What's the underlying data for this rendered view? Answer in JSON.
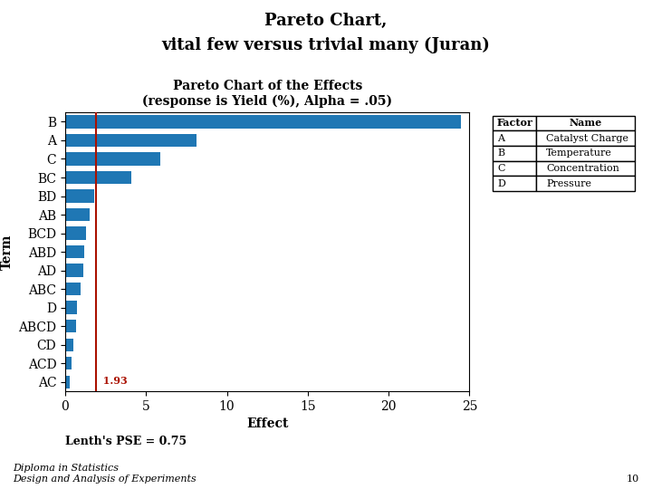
{
  "chart_data": {
    "type": "bar",
    "orientation": "horizontal",
    "title": "Pareto Chart,",
    "subtitle": "vital few versus trivial many (Juran)",
    "axes_title": "Pareto Chart of the Effects\n(response is Yield (%), Alpha = .05)",
    "categories": [
      "B",
      "A",
      "C",
      "BC",
      "BD",
      "AB",
      "BCD",
      "ABD",
      "AD",
      "ABC",
      "D",
      "ABCD",
      "CD",
      "ACD",
      "AC"
    ],
    "values": [
      24.5,
      8.1,
      5.9,
      4.1,
      1.8,
      1.5,
      1.3,
      1.2,
      1.1,
      0.95,
      0.75,
      0.65,
      0.5,
      0.4,
      0.3
    ],
    "x_label": "Effect",
    "y_label": "Term",
    "xlim": [
      0,
      25
    ],
    "xticks": [
      0,
      5,
      10,
      15,
      20,
      25
    ],
    "grid": false,
    "reference_line": {
      "value": 1.93,
      "label": "1.93",
      "color": "#AA1100"
    },
    "factor_table": {
      "headers": [
        "Factor",
        "Name"
      ],
      "rows": [
        [
          "A",
          "Catalyst Charge"
        ],
        [
          "B",
          "Temperature"
        ],
        [
          "C",
          "Concentration"
        ],
        [
          "D",
          "Pressure"
        ]
      ]
    },
    "annotations": [
      "Lenth's PSE = 0.75",
      "Diploma in Statistics\nDesign and Analysis of Experiments",
      "10"
    ]
  }
}
